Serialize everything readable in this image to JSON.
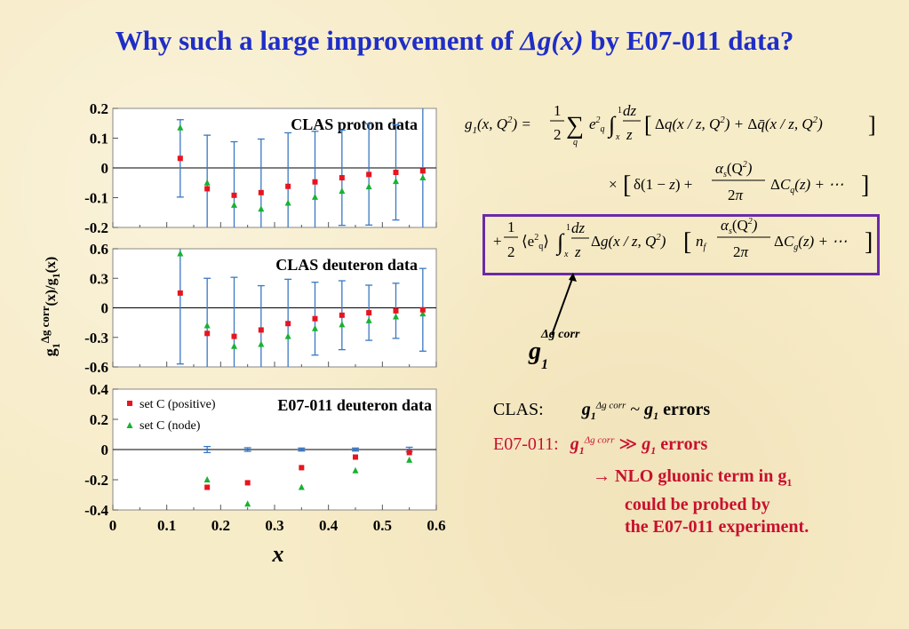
{
  "slide": {
    "title_prefix": "Why such a large improvement of ",
    "title_symbol": "Δg(x)",
    "title_suffix": " by E07-011 data?"
  },
  "labels": {
    "x_axis": "x",
    "y_axis": "g1Δg corr(x)/g1(x)",
    "gcorr_base": "g",
    "gcorr_sup": "Δg corr",
    "gcorr_sub": "1"
  },
  "statements": {
    "clas_label": "CLAS:",
    "clas_text": "~",
    "clas_g1": "g",
    "clas_errors": "errors",
    "e07_label": "E07-011:",
    "e07_errors": "errors",
    "e07_rel": "≫",
    "arrow_line1": "→  NLO gluonic term in g",
    "arrow_line2": "could be probed by",
    "arrow_line3": "the E07-011 experiment."
  },
  "colors": {
    "title": "#1f2ec6",
    "positive": "#e8141e",
    "node": "#17b232",
    "error_bars": "#3a78c2",
    "box": "#6a2aa8",
    "red_text": "#c8102e"
  },
  "chart_data": [
    {
      "type": "scatter",
      "title": "CLAS proton data",
      "ylim": [
        -0.2,
        0.2
      ],
      "yticks": [
        "0.2",
        "0.1",
        "0",
        "-0.1",
        "-0.2"
      ],
      "xlim": [
        0,
        0.6
      ],
      "series": [
        {
          "name": "set C (positive)",
          "marker": "square",
          "x": [
            0.125,
            0.175,
            0.225,
            0.275,
            0.325,
            0.375,
            0.425,
            0.475,
            0.525,
            0.575
          ],
          "y": [
            0.032,
            -0.07,
            -0.092,
            -0.083,
            -0.062,
            -0.047,
            -0.033,
            -0.022,
            -0.015,
            -0.01
          ],
          "err": [
            0.13,
            0.18,
            0.18,
            0.18,
            0.18,
            0.17,
            0.16,
            0.17,
            0.16,
            0.22
          ]
        },
        {
          "name": "set C (node)",
          "marker": "triangle",
          "x": [
            0.125,
            0.175,
            0.225,
            0.275,
            0.325,
            0.375,
            0.425,
            0.475,
            0.525,
            0.575
          ],
          "y": [
            0.135,
            -0.05,
            -0.125,
            -0.138,
            -0.118,
            -0.098,
            -0.078,
            -0.063,
            -0.045,
            -0.033
          ]
        }
      ]
    },
    {
      "type": "scatter",
      "title": "CLAS deuteron data",
      "ylim": [
        -0.6,
        0.6
      ],
      "yticks": [
        "0.6",
        "0.3",
        "0",
        "-0.3",
        "-0.6"
      ],
      "xlim": [
        0,
        0.6
      ],
      "series": [
        {
          "name": "set C (positive)",
          "marker": "square",
          "x": [
            0.125,
            0.175,
            0.225,
            0.275,
            0.325,
            0.375,
            0.425,
            0.475,
            0.525,
            0.575
          ],
          "y": [
            0.15,
            -0.26,
            -0.29,
            -0.225,
            -0.16,
            -0.11,
            -0.075,
            -0.05,
            -0.03,
            -0.02
          ],
          "err": [
            0.72,
            0.56,
            0.6,
            0.45,
            0.45,
            0.37,
            0.35,
            0.28,
            0.28,
            0.42
          ]
        },
        {
          "name": "set C (node)",
          "marker": "triangle",
          "x": [
            0.125,
            0.175,
            0.225,
            0.275,
            0.325,
            0.375,
            0.425,
            0.475,
            0.525,
            0.575
          ],
          "y": [
            0.55,
            -0.18,
            -0.39,
            -0.37,
            -0.29,
            -0.21,
            -0.17,
            -0.13,
            -0.09,
            -0.06
          ]
        }
      ]
    },
    {
      "type": "scatter",
      "title": "E07-011 deuteron data",
      "ylim": [
        -0.4,
        0.4
      ],
      "yticks": [
        "0.4",
        "0.2",
        "0",
        "-0.2",
        "-0.4"
      ],
      "xlim": [
        0,
        0.6
      ],
      "xticks": [
        "0",
        "0.1",
        "0.2",
        "0.3",
        "0.4",
        "0.5",
        "0.6"
      ],
      "series": [
        {
          "name": "set C (positive)",
          "marker": "square",
          "x": [
            0.175,
            0.25,
            0.35,
            0.45,
            0.55
          ],
          "y": [
            -0.25,
            -0.22,
            -0.12,
            -0.05,
            -0.02
          ],
          "err": [
            0.02,
            0.012,
            0.01,
            0.01,
            0.015
          ],
          "err_at_zero": true
        },
        {
          "name": "set C (node)",
          "marker": "triangle",
          "x": [
            0.175,
            0.25,
            0.35,
            0.45,
            0.55
          ],
          "y": [
            -0.2,
            -0.36,
            -0.25,
            -0.14,
            -0.07
          ]
        }
      ]
    }
  ]
}
